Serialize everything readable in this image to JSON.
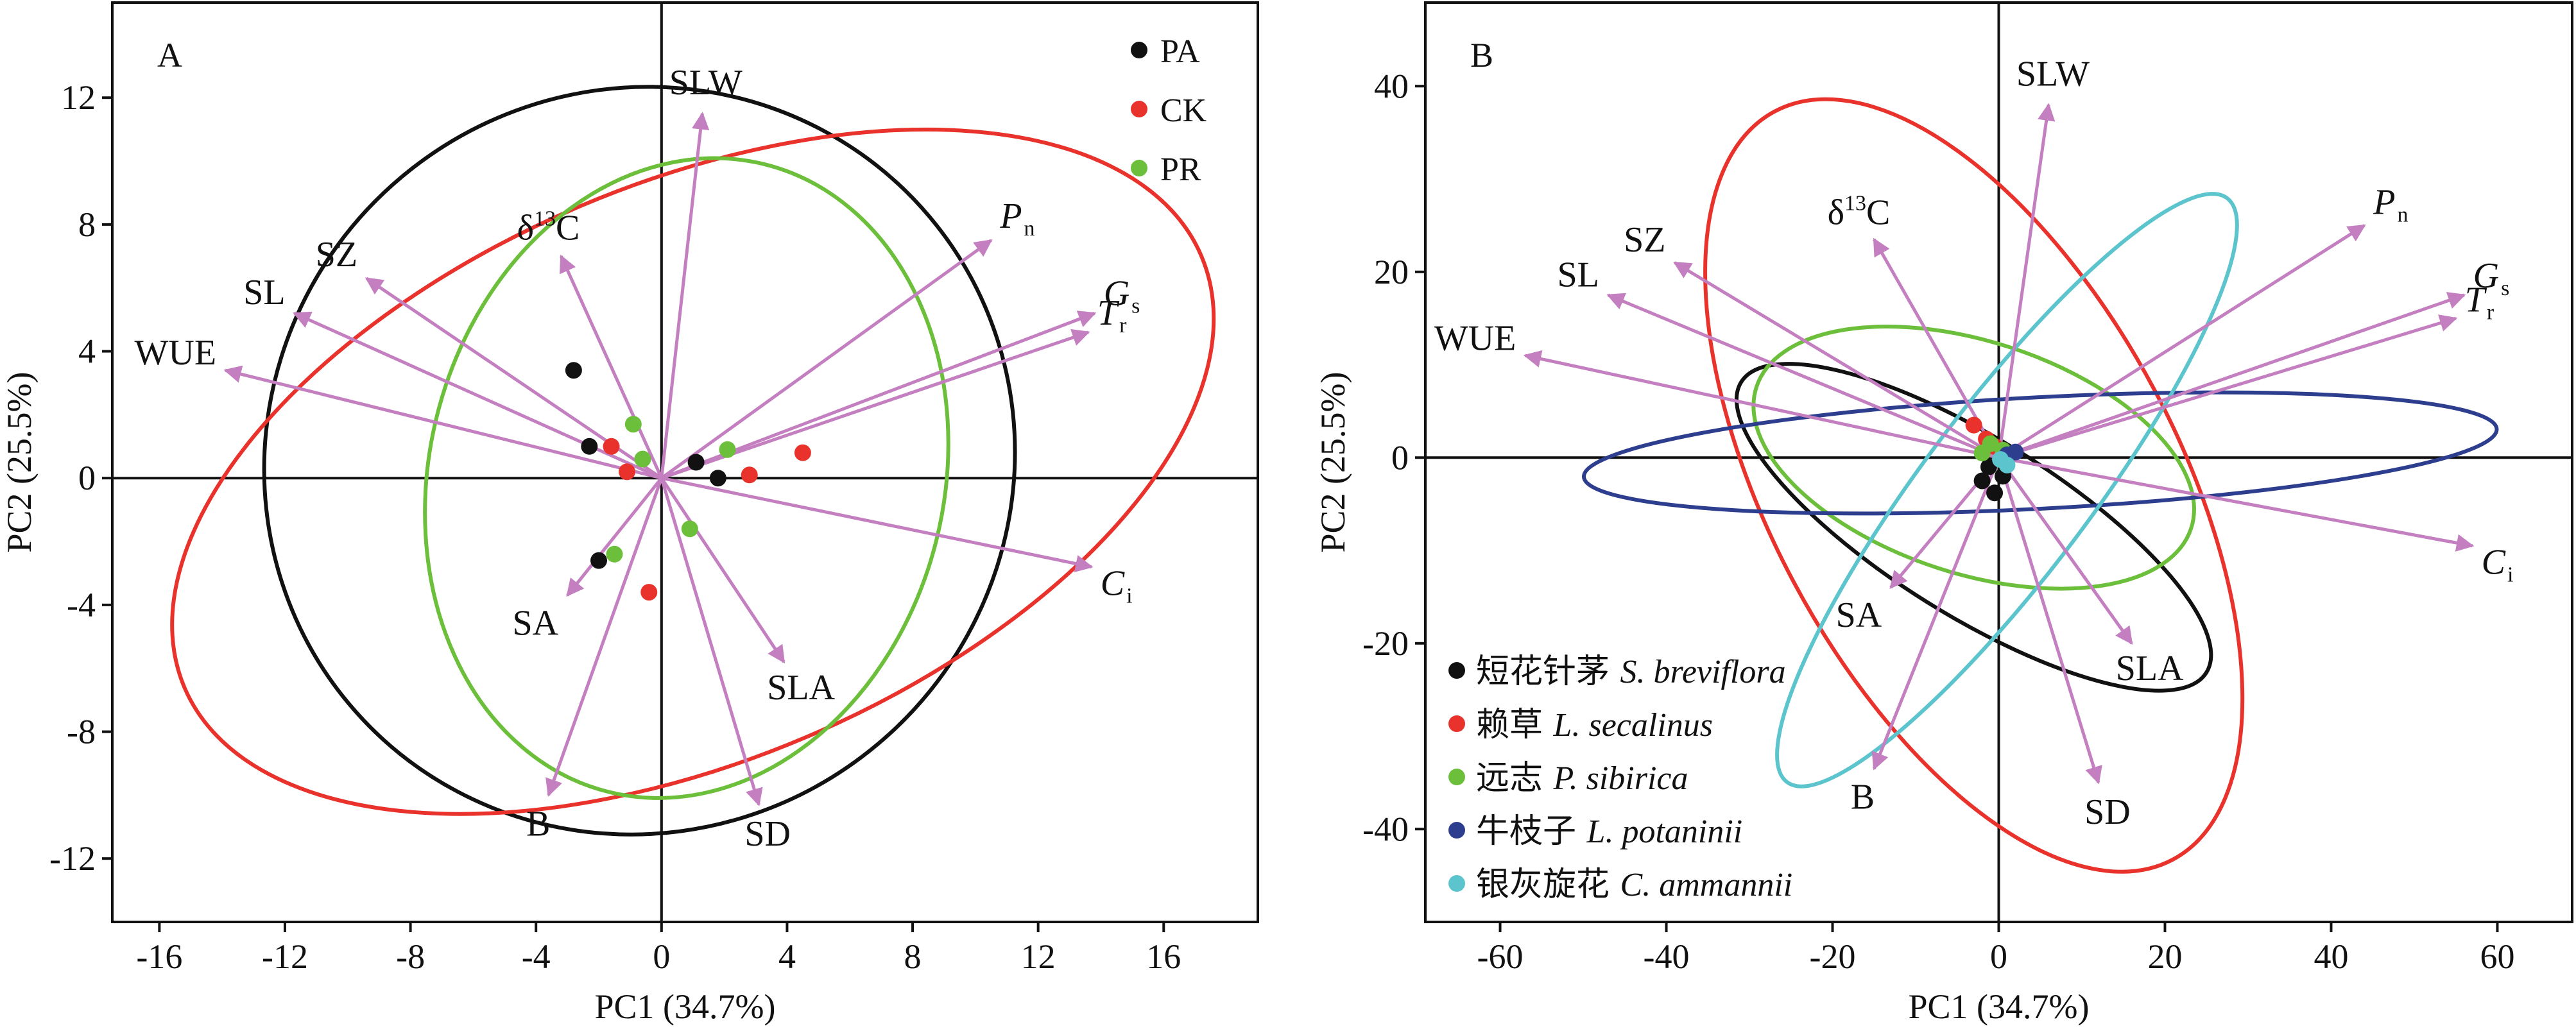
{
  "chart_data": [
    {
      "type": "scatter",
      "panel_label": "A",
      "xlabel": "PC1 (34.7%)",
      "ylabel": "PC2 (25.5%)",
      "xlim": [
        -17.5,
        19
      ],
      "ylim": [
        -14,
        15
      ],
      "xticks": [
        -16,
        -12,
        -8,
        -4,
        0,
        4,
        8,
        12,
        16
      ],
      "yticks": [
        -12,
        -8,
        -4,
        0,
        4,
        8,
        12
      ],
      "legend_position": "top-right",
      "series": [
        {
          "name": "PA",
          "color": "#111111",
          "points": [
            [
              -2.8,
              3.4
            ],
            [
              -2.3,
              1.0
            ],
            [
              -2.0,
              -2.6
            ],
            [
              1.1,
              0.5
            ],
            [
              1.8,
              0.0
            ]
          ]
        },
        {
          "name": "CK",
          "color": "#e8322b",
          "points": [
            [
              -1.6,
              1.0
            ],
            [
              -1.1,
              0.2
            ],
            [
              -0.4,
              -3.6
            ],
            [
              2.8,
              0.1
            ],
            [
              4.5,
              0.8
            ]
          ]
        },
        {
          "name": "PR",
          "color": "#6cbf3a",
          "points": [
            [
              -0.9,
              1.7
            ],
            [
              -0.6,
              0.6
            ],
            [
              -1.5,
              -2.4
            ],
            [
              0.9,
              -1.6
            ],
            [
              2.1,
              0.9
            ]
          ]
        }
      ],
      "ellipses": [
        {
          "group": "PA",
          "color": "#111111",
          "center": [
            -0.7,
            0.55
          ],
          "semi_axes": [
            11.8,
            11.95
          ],
          "rotation_deg": -50
        },
        {
          "group": "CK",
          "color": "#e8322b",
          "center": [
            1.0,
            0.2
          ],
          "semi_axes": [
            17.6,
            9.1
          ],
          "rotation_deg": 23
        },
        {
          "group": "PR",
          "color": "#6cbf3a",
          "center": [
            0.8,
            0.0
          ],
          "semi_axes": [
            8.2,
            10.2
          ],
          "rotation_deg": -14
        }
      ],
      "loadings": [
        {
          "name": "SLW",
          "x": 1.3,
          "y": 11.5
        },
        {
          "name": "Pn",
          "x": 10.5,
          "y": 7.5
        },
        {
          "name": "Gs",
          "x": 13.8,
          "y": 5.2
        },
        {
          "name": "Tr",
          "x": 13.6,
          "y": 4.6
        },
        {
          "name": "Ci",
          "x": 13.7,
          "y": -2.8
        },
        {
          "name": "SLA",
          "x": 3.9,
          "y": -5.8
        },
        {
          "name": "SD",
          "x": 3.1,
          "y": -10.3
        },
        {
          "name": "B",
          "x": -3.6,
          "y": -10.0
        },
        {
          "name": "SA",
          "x": -3.0,
          "y": -3.7
        },
        {
          "name": "δ13C",
          "x": -3.2,
          "y": 7.0
        },
        {
          "name": "SZ",
          "x": -9.4,
          "y": 6.3
        },
        {
          "name": "SL",
          "x": -11.7,
          "y": 5.2
        },
        {
          "name": "WUE",
          "x": -13.9,
          "y": 3.4
        }
      ]
    },
    {
      "type": "scatter",
      "panel_label": "B",
      "xlabel": "PC1 (34.7%)",
      "ylabel": "PC2 (25.5%)",
      "xlim": [
        -69,
        69
      ],
      "ylim": [
        -50,
        49
      ],
      "xticks": [
        -60,
        -40,
        -20,
        0,
        20,
        40,
        60
      ],
      "yticks": [
        -40,
        -20,
        0,
        20,
        40
      ],
      "legend_position": "bottom-left",
      "series": [
        {
          "name": "短花针茅",
          "latin": "S. breviflora",
          "color": "#111111",
          "points": [
            [
              -2.0,
              -2.5
            ],
            [
              -0.5,
              -3.8
            ],
            [
              0.5,
              -2.0
            ],
            [
              -1.2,
              -1.0
            ]
          ]
        },
        {
          "name": "赖草",
          "latin": "L. secalinus",
          "color": "#e8322b",
          "points": [
            [
              -3.0,
              3.5
            ],
            [
              -1.5,
              2.0
            ],
            [
              -0.5,
              1.2
            ]
          ]
        },
        {
          "name": "远志",
          "latin": "P. sibirica",
          "color": "#6cbf3a",
          "points": [
            [
              -1.0,
              1.5
            ],
            [
              -2.0,
              0.5
            ],
            [
              0.5,
              0.8
            ]
          ]
        },
        {
          "name": "牛枝子",
          "latin": "L. potaninii",
          "color": "#2e3e8f",
          "points": [
            [
              1.0,
              0.3
            ],
            [
              2.0,
              0.6
            ]
          ]
        },
        {
          "name": "银灰旋花",
          "latin": "C. ammannii",
          "color": "#5bc4cc",
          "points": [
            [
              0.2,
              -0.2
            ],
            [
              1.0,
              -0.8
            ]
          ]
        }
      ],
      "ellipses": [
        {
          "group": "短花针茅",
          "color": "#111111",
          "center": [
            -3.0,
            -7.5
          ],
          "semi_axes": [
            33.0,
            9.5
          ],
          "rotation_deg": -32
        },
        {
          "group": "赖草",
          "color": "#e8322b",
          "center": [
            -3.0,
            -3.0
          ],
          "semi_axes": [
            51.0,
            22.0
          ],
          "rotation_deg": -62
        },
        {
          "group": "远志",
          "color": "#6cbf3a",
          "center": [
            -3.0,
            0.0
          ],
          "semi_axes": [
            27.5,
            12.5
          ],
          "rotation_deg": -18
        },
        {
          "group": "牛枝子",
          "color": "#2e3e8f",
          "center": [
            5.0,
            0.5
          ],
          "semi_axes": [
            55.0,
            6.0
          ],
          "rotation_deg": 3
        },
        {
          "group": "银灰旋花",
          "color": "#5bc4cc",
          "center": [
            1.0,
            -3.5
          ],
          "semi_axes": [
            44.0,
            9.0
          ],
          "rotation_deg": 53
        }
      ],
      "loadings": [
        {
          "name": "SLW",
          "x": 6,
          "y": 38
        },
        {
          "name": "Pn",
          "x": 44,
          "y": 25
        },
        {
          "name": "Gs",
          "x": 56,
          "y": 17.5
        },
        {
          "name": "Tr",
          "x": 55,
          "y": 15
        },
        {
          "name": "Ci",
          "x": 57,
          "y": -9.5
        },
        {
          "name": "SLA",
          "x": 16,
          "y": -20
        },
        {
          "name": "SD",
          "x": 12,
          "y": -35
        },
        {
          "name": "B",
          "x": -15,
          "y": -33.5
        },
        {
          "name": "SA",
          "x": -13,
          "y": -14
        },
        {
          "name": "δ13C",
          "x": -15,
          "y": 23.5
        },
        {
          "name": "SZ",
          "x": -39,
          "y": 21
        },
        {
          "name": "SL",
          "x": -47,
          "y": 17.5
        },
        {
          "name": "WUE",
          "x": -57,
          "y": 11
        }
      ]
    }
  ]
}
